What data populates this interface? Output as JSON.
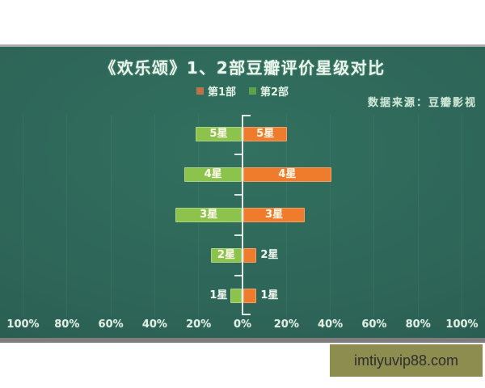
{
  "board": {
    "title": "《欢乐颂》1、2部豆瓣评价星级对比",
    "source_note": "数据来源：豆瓣影视",
    "legend": {
      "items": [
        {
          "label": "第1部",
          "color": "#bd7347"
        },
        {
          "label": "第2部",
          "color": "#5fa24c"
        }
      ]
    }
  },
  "watermark": {
    "text": "imtiyuvip88.com",
    "background": "#8d8d4f"
  },
  "chart_data": {
    "type": "bar",
    "variant": "diverging-horizontal",
    "title": "《欢乐颂》1、2部豆瓣评价星级对比",
    "source": "数据来源：豆瓣影视",
    "unit": "%",
    "categories": [
      "5星",
      "4星",
      "3星",
      "2星",
      "1星"
    ],
    "series": [
      {
        "name": "第1部",
        "side": "right",
        "color": "#ef7c2d",
        "values": [
          20,
          40,
          28,
          6,
          6
        ]
      },
      {
        "name": "第2部",
        "side": "left",
        "color": "#8cc34d",
        "values": [
          21,
          26,
          30,
          14,
          5
        ]
      }
    ],
    "x_tick_labels": [
      "100%",
      "80%",
      "60%",
      "40%",
      "20%",
      "0%",
      "20%",
      "40%",
      "60%",
      "80%",
      "100%"
    ],
    "axis": {
      "center_value": 0,
      "max_percent": 100,
      "gridlines": true
    },
    "legend_position": "top-center",
    "background": "chalkboard"
  }
}
